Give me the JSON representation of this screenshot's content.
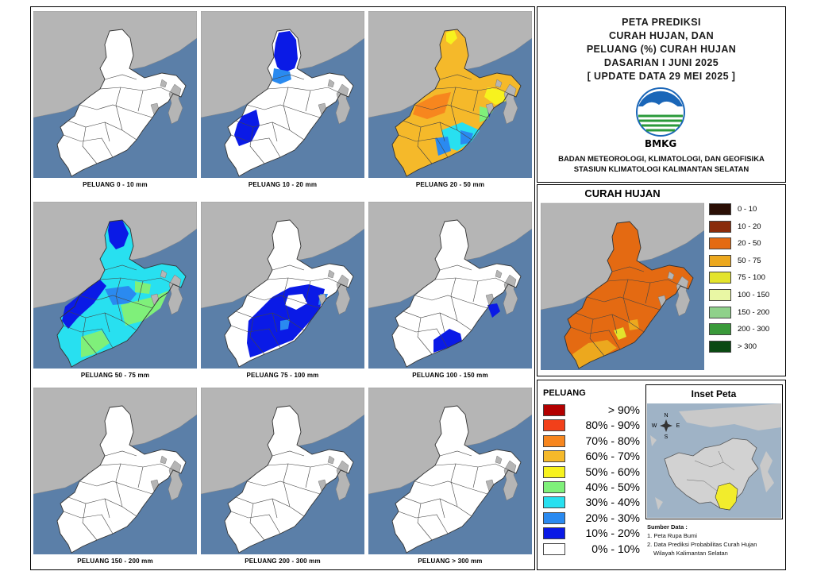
{
  "panels": [
    {
      "caption": "PELUANG 0 - 10 mm",
      "fill": "white"
    },
    {
      "caption": "PELUANG 10 - 20 mm",
      "fill": "p10_20"
    },
    {
      "caption": "PELUANG 20 - 50 mm",
      "fill": "p20_50"
    },
    {
      "caption": "PELUANG 50 - 75 mm",
      "fill": "p50_75"
    },
    {
      "caption": "PELUANG 75 - 100 mm",
      "fill": "p75_100"
    },
    {
      "caption": "PELUANG 100 - 150 mm",
      "fill": "p100_150"
    },
    {
      "caption": "PELUANG 150 - 200 mm",
      "fill": "white"
    },
    {
      "caption": "PELUANG 200 - 300 mm",
      "fill": "white"
    },
    {
      "caption": "PELUANG > 300 mm",
      "fill": "white"
    }
  ],
  "title": {
    "line1": "PETA PREDIKSI",
    "line2": "CURAH HUJAN, DAN",
    "line3": "PELUANG (%) CURAH HUJAN",
    "line4": "DASARIAN I JUNI 2025",
    "line5": "[ UPDATE DATA 29 MEI 2025 ]"
  },
  "logo": {
    "text": "BMKG"
  },
  "organization": {
    "line1": "BADAN METEOROLOGI, KLIMATOLOGI, DAN GEOFISIKA",
    "line2": "STASIUN KLIMATOLOGI KALIMANTAN SELATAN"
  },
  "curah_hujan": {
    "title": "CURAH HUJAN",
    "legend": [
      {
        "label": "0 - 10",
        "color": "#2b0f05"
      },
      {
        "label": "10 - 20",
        "color": "#8a2b0a"
      },
      {
        "label": "20 - 50",
        "color": "#e46a12"
      },
      {
        "label": "50 - 75",
        "color": "#eca81e"
      },
      {
        "label": "75 - 100",
        "color": "#e3e32c"
      },
      {
        "label": "100 - 150",
        "color": "#e9f7a4"
      },
      {
        "label": "150 - 200",
        "color": "#8fd18a"
      },
      {
        "label": "200 - 300",
        "color": "#3a9a3a"
      },
      {
        "label": "> 300",
        "color": "#0a4a12"
      }
    ]
  },
  "peluang": {
    "title": "PELUANG",
    "legend": [
      {
        "label": "> 90%",
        "color": "#b30000"
      },
      {
        "label": "80% - 90%",
        "color": "#f2401a"
      },
      {
        "label": "70% - 80%",
        "color": "#f7861e"
      },
      {
        "label": "60% - 70%",
        "color": "#f5b92a"
      },
      {
        "label": "50% - 60%",
        "color": "#f7f21e"
      },
      {
        "label": "40% - 50%",
        "color": "#7ff07a"
      },
      {
        "label": "30% - 40%",
        "color": "#28e0f0"
      },
      {
        "label": "20% - 30%",
        "color": "#2a8af0"
      },
      {
        "label": "10% - 20%",
        "color": "#0a1ae6"
      },
      {
        "label": "0% - 10%",
        "color": "#ffffff"
      }
    ]
  },
  "inset": {
    "title": "Inset Peta"
  },
  "sources": {
    "heading": "Sumber Data :",
    "item1": "1. Peta Rupa Bumi",
    "item2": "2. Data Prediksi Probabilitas Curah Hujan",
    "item3": "Wilayah Kalimantan Selatan"
  },
  "colors": {
    "sea": "#5b7fa8",
    "land_neighbor": "#b5b5b5"
  }
}
